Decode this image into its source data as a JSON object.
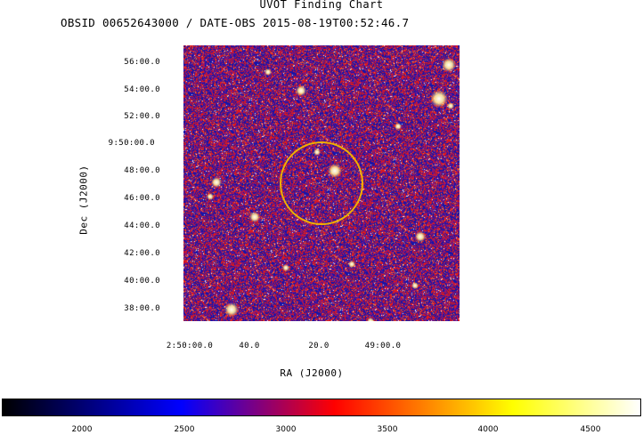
{
  "title": "UVOT Finding Chart",
  "subtitle": "OBSID 00652643000 / DATE-OBS 2015-08-19T00:52:46.7",
  "y_axis": {
    "label": "Dec (J2000)",
    "ticks": [
      "56:00.0",
      "54:00.0",
      "52:00.0",
      "9:50:00.0",
      "48:00.0",
      "46:00.0",
      "44:00.0",
      "42:00.0",
      "40:00.0",
      "38:00.0"
    ]
  },
  "x_axis": {
    "label": "RA (J2000)",
    "ticks": [
      "2:50:00.0",
      "40.0",
      "20.0",
      "49:00.0"
    ]
  },
  "colorbar": {
    "ticks": [
      "2000",
      "2500",
      "3000",
      "3500",
      "4000",
      "4500"
    ],
    "colors": [
      "#000000",
      "#0000ff",
      "#ff0000",
      "#ffff00",
      "#ffffff"
    ]
  },
  "circle_color": "#f0b000"
}
